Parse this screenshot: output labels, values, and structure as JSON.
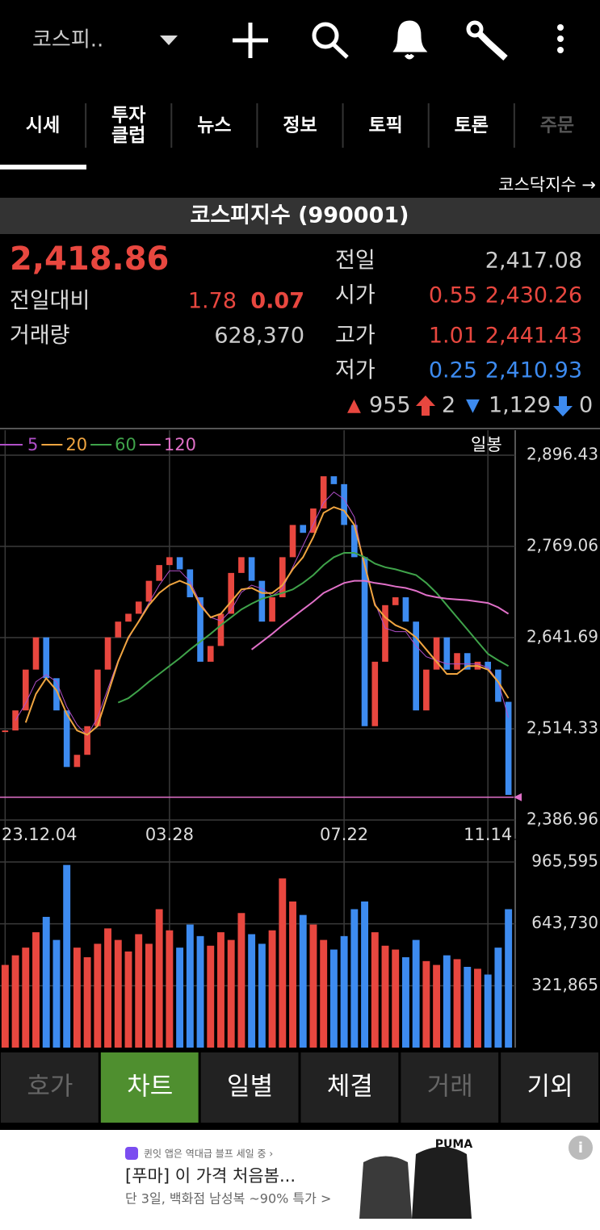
{
  "top_bar": {
    "title": "코스피.."
  },
  "tabs": [
    [
      "시세"
    ],
    [
      "투자",
      "클럽"
    ],
    [
      "뉴스"
    ],
    [
      "정보"
    ],
    [
      "토픽"
    ],
    [
      "토론"
    ],
    [
      "주문"
    ]
  ],
  "index_link": "코스닥지수 →",
  "index_name": "코스피지수 (990001)",
  "quote": {
    "price": "2,418.86",
    "change_label": "전일대비",
    "change": "1.78",
    "change_pct": "0.07",
    "volume_label": "거래량",
    "volume": "628,370",
    "prev_close": {
      "label": "전일",
      "value": "2,417.08"
    },
    "open": {
      "label": "시가",
      "pct": "0.55",
      "value": "2,430.26"
    },
    "high": {
      "label": "고가",
      "pct": "1.01",
      "value": "2,441.43"
    },
    "low": {
      "label": "저가",
      "pct": "0.25",
      "value": "2,410.93"
    },
    "breadth": {
      "up_sym": "▲",
      "up": "955",
      "limit_up": "2",
      "down_sym": "▼",
      "down": "1,129",
      "limit_down": "0"
    }
  },
  "chart_data": {
    "type": "candlestick",
    "period_label": "일봉",
    "categories": [
      "23.12.04",
      null,
      null,
      null,
      null,
      null,
      null,
      null,
      null,
      null,
      null,
      null,
      null,
      null,
      null,
      null,
      "03.28",
      null,
      null,
      null,
      null,
      null,
      null,
      null,
      null,
      null,
      null,
      null,
      null,
      null,
      null,
      null,
      null,
      "07.22",
      null,
      null,
      null,
      null,
      null,
      null,
      null,
      null,
      null,
      null,
      null,
      null,
      null,
      "11.14",
      null,
      null
    ],
    "close": [
      2512,
      2540,
      2597,
      2642,
      2585,
      2540,
      2461,
      2478,
      2518,
      2597,
      2642,
      2664,
      2675,
      2692,
      2721,
      2743,
      2754,
      2737,
      2698,
      2608,
      2630,
      2675,
      2732,
      2754,
      2721,
      2664,
      2698,
      2754,
      2799,
      2788,
      2822,
      2867,
      2856,
      2799,
      2754,
      2518,
      2608,
      2687,
      2698,
      2664,
      2540,
      2597,
      2642,
      2597,
      2620,
      2597,
      2608,
      2597,
      2552,
      2422
    ],
    "up_color": "#e8473f",
    "down_color": "#3d8bf0",
    "series": [
      {
        "name": "5",
        "color": "#b04fc8",
        "values": [
          null,
          2526,
          2550,
          2580,
          2590,
          2580,
          2545,
          2520,
          2505,
          2530,
          2570,
          2610,
          2640,
          2665,
          2690,
          2715,
          2735,
          2735,
          2720,
          2690,
          2670,
          2665,
          2680,
          2705,
          2715,
          2710,
          2700,
          2710,
          2740,
          2770,
          2800,
          2830,
          2845,
          2835,
          2810,
          2740,
          2690,
          2655,
          2650,
          2650,
          2630,
          2615,
          2610,
          2605,
          2605,
          2605,
          2605,
          2600,
          2580,
          2530
        ]
      },
      {
        "name": "20",
        "color": "#f0a540",
        "values": [
          null,
          null,
          2523,
          2563,
          2585,
          2568,
          2535,
          2512,
          2506,
          2518,
          2563,
          2608,
          2642,
          2664,
          2687,
          2704,
          2715,
          2721,
          2715,
          2687,
          2670,
          2675,
          2692,
          2709,
          2711,
          2704,
          2704,
          2715,
          2737,
          2754,
          2782,
          2816,
          2824,
          2819,
          2799,
          2743,
          2687,
          2670,
          2659,
          2653,
          2642,
          2625,
          2608,
          2591,
          2591,
          2602,
          2602,
          2597,
          2580,
          2557
        ]
      },
      {
        "name": "60",
        "color": "#3fa34a",
        "values": [
          null,
          null,
          null,
          null,
          null,
          null,
          null,
          null,
          null,
          null,
          null,
          2551,
          2557,
          2568,
          2580,
          2591,
          2602,
          2613,
          2625,
          2636,
          2647,
          2659,
          2670,
          2681,
          2689,
          2696,
          2700,
          2704,
          2709,
          2718,
          2729,
          2743,
          2754,
          2760,
          2760,
          2754,
          2745,
          2740,
          2737,
          2733,
          2729,
          2718,
          2704,
          2687,
          2670,
          2653,
          2636,
          2619,
          2610,
          2602
        ]
      },
      {
        "name": "120",
        "color": "#e070c8",
        "values": [
          null,
          null,
          null,
          null,
          null,
          null,
          null,
          null,
          null,
          null,
          null,
          null,
          null,
          null,
          null,
          null,
          null,
          null,
          null,
          null,
          null,
          null,
          null,
          null,
          2625,
          2636,
          2647,
          2659,
          2670,
          2681,
          2692,
          2704,
          2711,
          2718,
          2721,
          2721,
          2718,
          2716,
          2713,
          2711,
          2707,
          2701,
          2698,
          2696,
          2695,
          2694,
          2692,
          2690,
          2684,
          2675
        ]
      }
    ],
    "current_line": 2418.86,
    "ylim": [
      2386.96,
      2896.43
    ],
    "yticks": [
      {
        "value": 2896.43,
        "label": "2,896.43"
      },
      {
        "value": 2769.06,
        "label": "2,769.06"
      },
      {
        "value": 2641.69,
        "label": "2,641.69"
      },
      {
        "value": 2514.33,
        "label": "2,514.33"
      },
      {
        "value": 2386.96,
        "label": "2,386.96"
      }
    ],
    "volume": {
      "values": [
        430000,
        480000,
        520000,
        600000,
        680000,
        560000,
        950000,
        520000,
        470000,
        540000,
        620000,
        560000,
        500000,
        590000,
        540000,
        720000,
        610000,
        520000,
        640000,
        580000,
        530000,
        600000,
        560000,
        700000,
        590000,
        540000,
        610000,
        880000,
        760000,
        690000,
        640000,
        560000,
        510000,
        580000,
        720000,
        760000,
        600000,
        530000,
        510000,
        470000,
        560000,
        450000,
        430000,
        480000,
        460000,
        420000,
        410000,
        380000,
        520000,
        720000
      ],
      "ylim": [
        0,
        965595
      ],
      "yticks": [
        {
          "value": 965595,
          "label": "965,595"
        },
        {
          "value": 643730,
          "label": "643,730"
        },
        {
          "value": 321865,
          "label": "321,865"
        }
      ]
    }
  },
  "bottom_tabs": [
    "호가",
    "차트",
    "일별",
    "체결",
    "거래",
    "기외"
  ],
  "ad": {
    "notice": "퀸잇 앱은 역대급 블프 세일 중 ›",
    "headline": "[푸마] 이 가격 처음봄...",
    "sub": "단 3일, 백화점 남성복 ~90% 특가 >",
    "brand": "PUMA"
  }
}
